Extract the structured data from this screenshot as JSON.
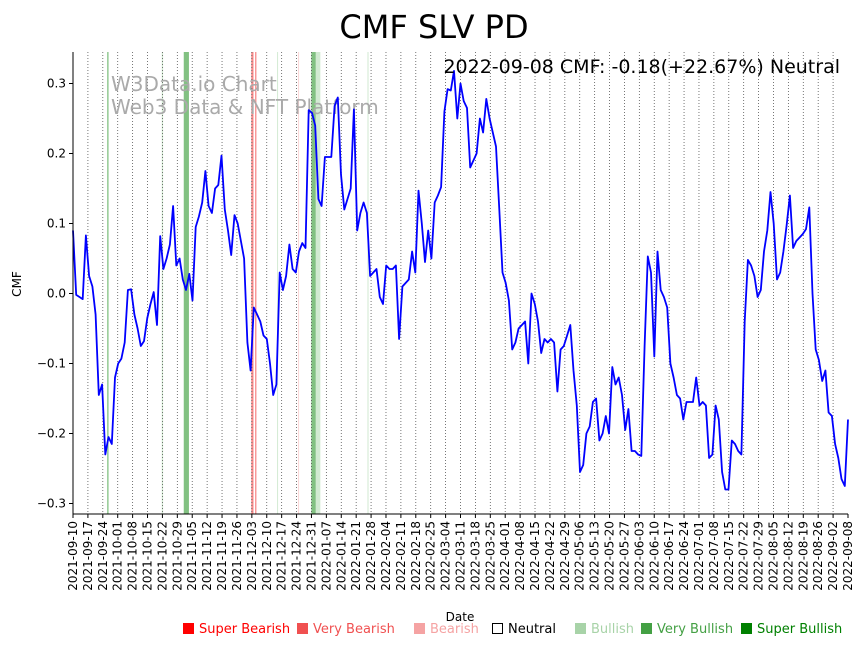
{
  "chart_data": {
    "type": "line",
    "title": "CMF SLV PD",
    "status_text": "2022-09-08 CMF: -0.18(+22.67%) Neutral",
    "watermark": [
      "W3Data.io Chart",
      "Web3 Data & NFT Platform"
    ],
    "xlabel": "Date",
    "ylabel": "CMF",
    "ylim": [
      -0.315,
      0.345
    ],
    "yticks": [
      -0.3,
      -0.2,
      -0.1,
      0.0,
      0.1,
      0.2,
      0.3
    ],
    "ytick_labels": [
      "−0.3",
      "−0.2",
      "−0.1",
      "0.0",
      "0.1",
      "0.2",
      "0.3"
    ],
    "x_dates": [
      "2021-09-10",
      "2021-09-17",
      "2021-09-24",
      "2021-10-01",
      "2021-10-08",
      "2021-10-15",
      "2021-10-22",
      "2021-10-29",
      "2021-11-05",
      "2021-11-12",
      "2021-11-19",
      "2021-11-26",
      "2021-12-03",
      "2021-12-10",
      "2021-12-17",
      "2021-12-24",
      "2021-12-31",
      "2022-01-07",
      "2022-01-14",
      "2022-01-21",
      "2022-01-28",
      "2022-02-04",
      "2022-02-11",
      "2022-02-18",
      "2022-02-25",
      "2022-03-04",
      "2022-03-11",
      "2022-03-18",
      "2022-03-25",
      "2022-04-01",
      "2022-04-08",
      "2022-04-15",
      "2022-04-22",
      "2022-04-29",
      "2022-05-06",
      "2022-05-13",
      "2022-05-20",
      "2022-05-27",
      "2022-06-03",
      "2022-06-10",
      "2022-06-17",
      "2022-06-24",
      "2022-07-01",
      "2022-07-08",
      "2022-07-15",
      "2022-07-22",
      "2022-07-29",
      "2022-08-05",
      "2022-08-12",
      "2022-08-19",
      "2022-08-26",
      "2022-09-02",
      "2022-09-08"
    ],
    "grid": "vertical dotted at each date tick",
    "series": [
      {
        "name": "CMF",
        "color": "#0000ff",
        "points": [
          [
            0,
            0.09
          ],
          [
            1,
            -0.002
          ],
          [
            2,
            -0.005
          ],
          [
            3,
            -0.008
          ],
          [
            4,
            0.083
          ],
          [
            5,
            0.025
          ],
          [
            6,
            0.01
          ],
          [
            7,
            -0.03
          ],
          [
            8,
            -0.145
          ],
          [
            9,
            -0.13
          ],
          [
            10,
            -0.23
          ],
          [
            11,
            -0.205
          ],
          [
            12,
            -0.215
          ],
          [
            13,
            -0.12
          ],
          [
            14,
            -0.1
          ],
          [
            15,
            -0.093
          ],
          [
            16,
            -0.07
          ],
          [
            17,
            0.005
          ],
          [
            18,
            0.006
          ],
          [
            19,
            -0.03
          ],
          [
            20,
            -0.05
          ],
          [
            21,
            -0.075
          ],
          [
            22,
            -0.068
          ],
          [
            23,
            -0.035
          ],
          [
            24,
            -0.015
          ],
          [
            25,
            0.002
          ],
          [
            26,
            -0.045
          ],
          [
            27,
            0.082
          ],
          [
            28,
            0.035
          ],
          [
            29,
            0.05
          ],
          [
            30,
            0.07
          ],
          [
            31,
            0.125
          ],
          [
            32,
            0.04
          ],
          [
            33,
            0.05
          ],
          [
            34,
            0.02
          ],
          [
            35,
            0.005
          ],
          [
            36,
            0.028
          ],
          [
            37,
            -0.01
          ],
          [
            38,
            0.095
          ],
          [
            39,
            0.11
          ],
          [
            40,
            0.13
          ],
          [
            41,
            0.175
          ],
          [
            42,
            0.125
          ],
          [
            43,
            0.115
          ],
          [
            44,
            0.15
          ],
          [
            45,
            0.155
          ],
          [
            46,
            0.197
          ],
          [
            47,
            0.12
          ],
          [
            48,
            0.09
          ],
          [
            49,
            0.055
          ],
          [
            50,
            0.112
          ],
          [
            51,
            0.1
          ],
          [
            52,
            0.075
          ],
          [
            53,
            0.05
          ],
          [
            54,
            -0.07
          ],
          [
            55,
            -0.11
          ],
          [
            56,
            -0.02
          ],
          [
            57,
            -0.03
          ],
          [
            58,
            -0.04
          ],
          [
            59,
            -0.06
          ],
          [
            60,
            -0.065
          ],
          [
            61,
            -0.1
          ],
          [
            62,
            -0.145
          ],
          [
            63,
            -0.13
          ],
          [
            64,
            0.03
          ],
          [
            65,
            0.005
          ],
          [
            66,
            0.025
          ],
          [
            67,
            0.07
          ],
          [
            68,
            0.035
          ],
          [
            69,
            0.03
          ],
          [
            70,
            0.06
          ],
          [
            71,
            0.072
          ],
          [
            72,
            0.065
          ],
          [
            73,
            0.262
          ],
          [
            74,
            0.258
          ],
          [
            75,
            0.24
          ],
          [
            76,
            0.135
          ],
          [
            77,
            0.125
          ],
          [
            78,
            0.195
          ],
          [
            79,
            0.195
          ],
          [
            80,
            0.195
          ],
          [
            81,
            0.268
          ],
          [
            82,
            0.28
          ],
          [
            83,
            0.17
          ],
          [
            84,
            0.12
          ],
          [
            85,
            0.135
          ],
          [
            86,
            0.15
          ],
          [
            87,
            0.263
          ],
          [
            88,
            0.09
          ],
          [
            89,
            0.115
          ],
          [
            90,
            0.13
          ],
          [
            91,
            0.115
          ],
          [
            92,
            0.025
          ],
          [
            93,
            0.03
          ],
          [
            94,
            0.035
          ],
          [
            95,
            -0.005
          ],
          [
            96,
            -0.015
          ],
          [
            97,
            0.04
          ],
          [
            98,
            0.035
          ],
          [
            99,
            0.035
          ],
          [
            100,
            0.04
          ],
          [
            101,
            -0.065
          ],
          [
            102,
            0.01
          ],
          [
            103,
            0.015
          ],
          [
            104,
            0.02
          ],
          [
            105,
            0.06
          ],
          [
            106,
            0.03
          ],
          [
            107,
            0.147
          ],
          [
            108,
            0.1
          ],
          [
            109,
            0.045
          ],
          [
            110,
            0.09
          ],
          [
            111,
            0.05
          ],
          [
            112,
            0.13
          ],
          [
            113,
            0.14
          ],
          [
            114,
            0.152
          ],
          [
            115,
            0.26
          ],
          [
            116,
            0.292
          ],
          [
            117,
            0.29
          ],
          [
            118,
            0.318
          ],
          [
            119,
            0.25
          ],
          [
            120,
            0.3
          ],
          [
            121,
            0.275
          ],
          [
            122,
            0.265
          ],
          [
            123,
            0.18
          ],
          [
            124,
            0.19
          ],
          [
            125,
            0.2
          ],
          [
            126,
            0.25
          ],
          [
            127,
            0.23
          ],
          [
            128,
            0.278
          ],
          [
            129,
            0.25
          ],
          [
            130,
            0.23
          ],
          [
            131,
            0.21
          ],
          [
            132,
            0.12
          ],
          [
            133,
            0.03
          ],
          [
            134,
            0.015
          ],
          [
            135,
            -0.01
          ],
          [
            136,
            -0.08
          ],
          [
            137,
            -0.07
          ],
          [
            138,
            -0.05
          ],
          [
            139,
            -0.045
          ],
          [
            140,
            -0.04
          ],
          [
            141,
            -0.1
          ],
          [
            142,
            0.0
          ],
          [
            143,
            -0.015
          ],
          [
            144,
            -0.04
          ],
          [
            145,
            -0.085
          ],
          [
            146,
            -0.065
          ],
          [
            147,
            -0.07
          ],
          [
            148,
            -0.065
          ],
          [
            149,
            -0.07
          ],
          [
            150,
            -0.14
          ],
          [
            151,
            -0.08
          ],
          [
            152,
            -0.075
          ],
          [
            153,
            -0.06
          ],
          [
            154,
            -0.045
          ],
          [
            155,
            -0.11
          ],
          [
            156,
            -0.16
          ],
          [
            157,
            -0.255
          ],
          [
            158,
            -0.245
          ],
          [
            159,
            -0.2
          ],
          [
            160,
            -0.19
          ],
          [
            161,
            -0.155
          ],
          [
            162,
            -0.15
          ],
          [
            163,
            -0.21
          ],
          [
            164,
            -0.2
          ],
          [
            165,
            -0.175
          ],
          [
            166,
            -0.2
          ],
          [
            167,
            -0.105
          ],
          [
            168,
            -0.13
          ],
          [
            169,
            -0.12
          ],
          [
            170,
            -0.145
          ],
          [
            171,
            -0.195
          ],
          [
            172,
            -0.165
          ],
          [
            173,
            -0.225
          ],
          [
            174,
            -0.225
          ],
          [
            175,
            -0.23
          ],
          [
            176,
            -0.232
          ],
          [
            177,
            -0.075
          ],
          [
            178,
            0.053
          ],
          [
            179,
            0.03
          ],
          [
            180,
            -0.09
          ],
          [
            181,
            0.06
          ],
          [
            182,
            0.005
          ],
          [
            183,
            -0.005
          ],
          [
            184,
            -0.02
          ],
          [
            185,
            -0.1
          ],
          [
            186,
            -0.12
          ],
          [
            187,
            -0.145
          ],
          [
            188,
            -0.15
          ],
          [
            189,
            -0.18
          ],
          [
            190,
            -0.155
          ],
          [
            191,
            -0.155
          ],
          [
            192,
            -0.155
          ],
          [
            193,
            -0.12
          ],
          [
            194,
            -0.16
          ],
          [
            195,
            -0.155
          ],
          [
            196,
            -0.16
          ],
          [
            197,
            -0.235
          ],
          [
            198,
            -0.23
          ],
          [
            199,
            -0.16
          ],
          [
            200,
            -0.18
          ],
          [
            201,
            -0.255
          ],
          [
            202,
            -0.28
          ],
          [
            203,
            -0.28
          ],
          [
            204,
            -0.21
          ],
          [
            205,
            -0.215
          ],
          [
            206,
            -0.225
          ],
          [
            207,
            -0.23
          ],
          [
            208,
            -0.04
          ],
          [
            209,
            0.048
          ],
          [
            210,
            0.04
          ],
          [
            211,
            0.025
          ],
          [
            212,
            -0.005
          ],
          [
            213,
            0.005
          ],
          [
            214,
            0.06
          ],
          [
            215,
            0.09
          ],
          [
            216,
            0.145
          ],
          [
            217,
            0.1
          ],
          [
            218,
            0.02
          ],
          [
            219,
            0.03
          ],
          [
            220,
            0.06
          ],
          [
            221,
            0.097
          ],
          [
            222,
            0.14
          ],
          [
            223,
            0.065
          ],
          [
            224,
            0.075
          ],
          [
            225,
            0.08
          ],
          [
            226,
            0.085
          ],
          [
            227,
            0.092
          ],
          [
            228,
            0.123
          ],
          [
            229,
            0.0
          ],
          [
            230,
            -0.08
          ],
          [
            231,
            -0.095
          ],
          [
            232,
            -0.125
          ],
          [
            233,
            -0.11
          ],
          [
            234,
            -0.17
          ],
          [
            235,
            -0.175
          ],
          [
            236,
            -0.215
          ],
          [
            237,
            -0.235
          ],
          [
            238,
            -0.265
          ],
          [
            239,
            -0.275
          ],
          [
            240,
            -0.18
          ]
        ]
      }
    ],
    "signal_bands": [
      {
        "x0": 10.6,
        "x1": 11.0,
        "class": "very_bullish"
      },
      {
        "x0": 27.5,
        "x1": 27.9,
        "class": "bullish"
      },
      {
        "x0": 34.3,
        "x1": 35.9,
        "class": "very_bullish"
      },
      {
        "x0": 55.2,
        "x1": 55.9,
        "class": "very_bearish"
      },
      {
        "x0": 56.4,
        "x1": 56.8,
        "class": "very_bearish"
      },
      {
        "x0": 63.2,
        "x1": 63.5,
        "class": "bullish"
      },
      {
        "x0": 69.7,
        "x1": 70.0,
        "class": "bearish"
      },
      {
        "x0": 73.8,
        "x1": 75.2,
        "class": "very_bullish"
      },
      {
        "x0": 75.2,
        "x1": 76.6,
        "class": "bullish"
      },
      {
        "x0": 91.2,
        "x1": 91.5,
        "class": "bullish"
      }
    ],
    "legend": [
      {
        "key": "super_bearish",
        "label": "Super Bearish",
        "color": "#ff0000"
      },
      {
        "key": "very_bearish",
        "label": "Very Bearish",
        "color": "#f05050"
      },
      {
        "key": "bearish",
        "label": "Bearish",
        "color": "#f5a3a3"
      },
      {
        "key": "neutral",
        "label": "Neutral",
        "color": "#000000"
      },
      {
        "key": "bullish",
        "label": "Bullish",
        "color": "#a8d3a8"
      },
      {
        "key": "very_bullish",
        "label": "Very Bullish",
        "color": "#44a044"
      },
      {
        "key": "super_bullish",
        "label": "Super Bullish",
        "color": "#008000"
      }
    ],
    "band_colors": {
      "bullish": "#d2ead2",
      "very_bullish": "#82c182",
      "bearish": "#fbd6d6",
      "very_bearish": "#f88a8a",
      "super_bearish": "#ff4d4d",
      "super_bullish": "#2e9a2e"
    }
  }
}
